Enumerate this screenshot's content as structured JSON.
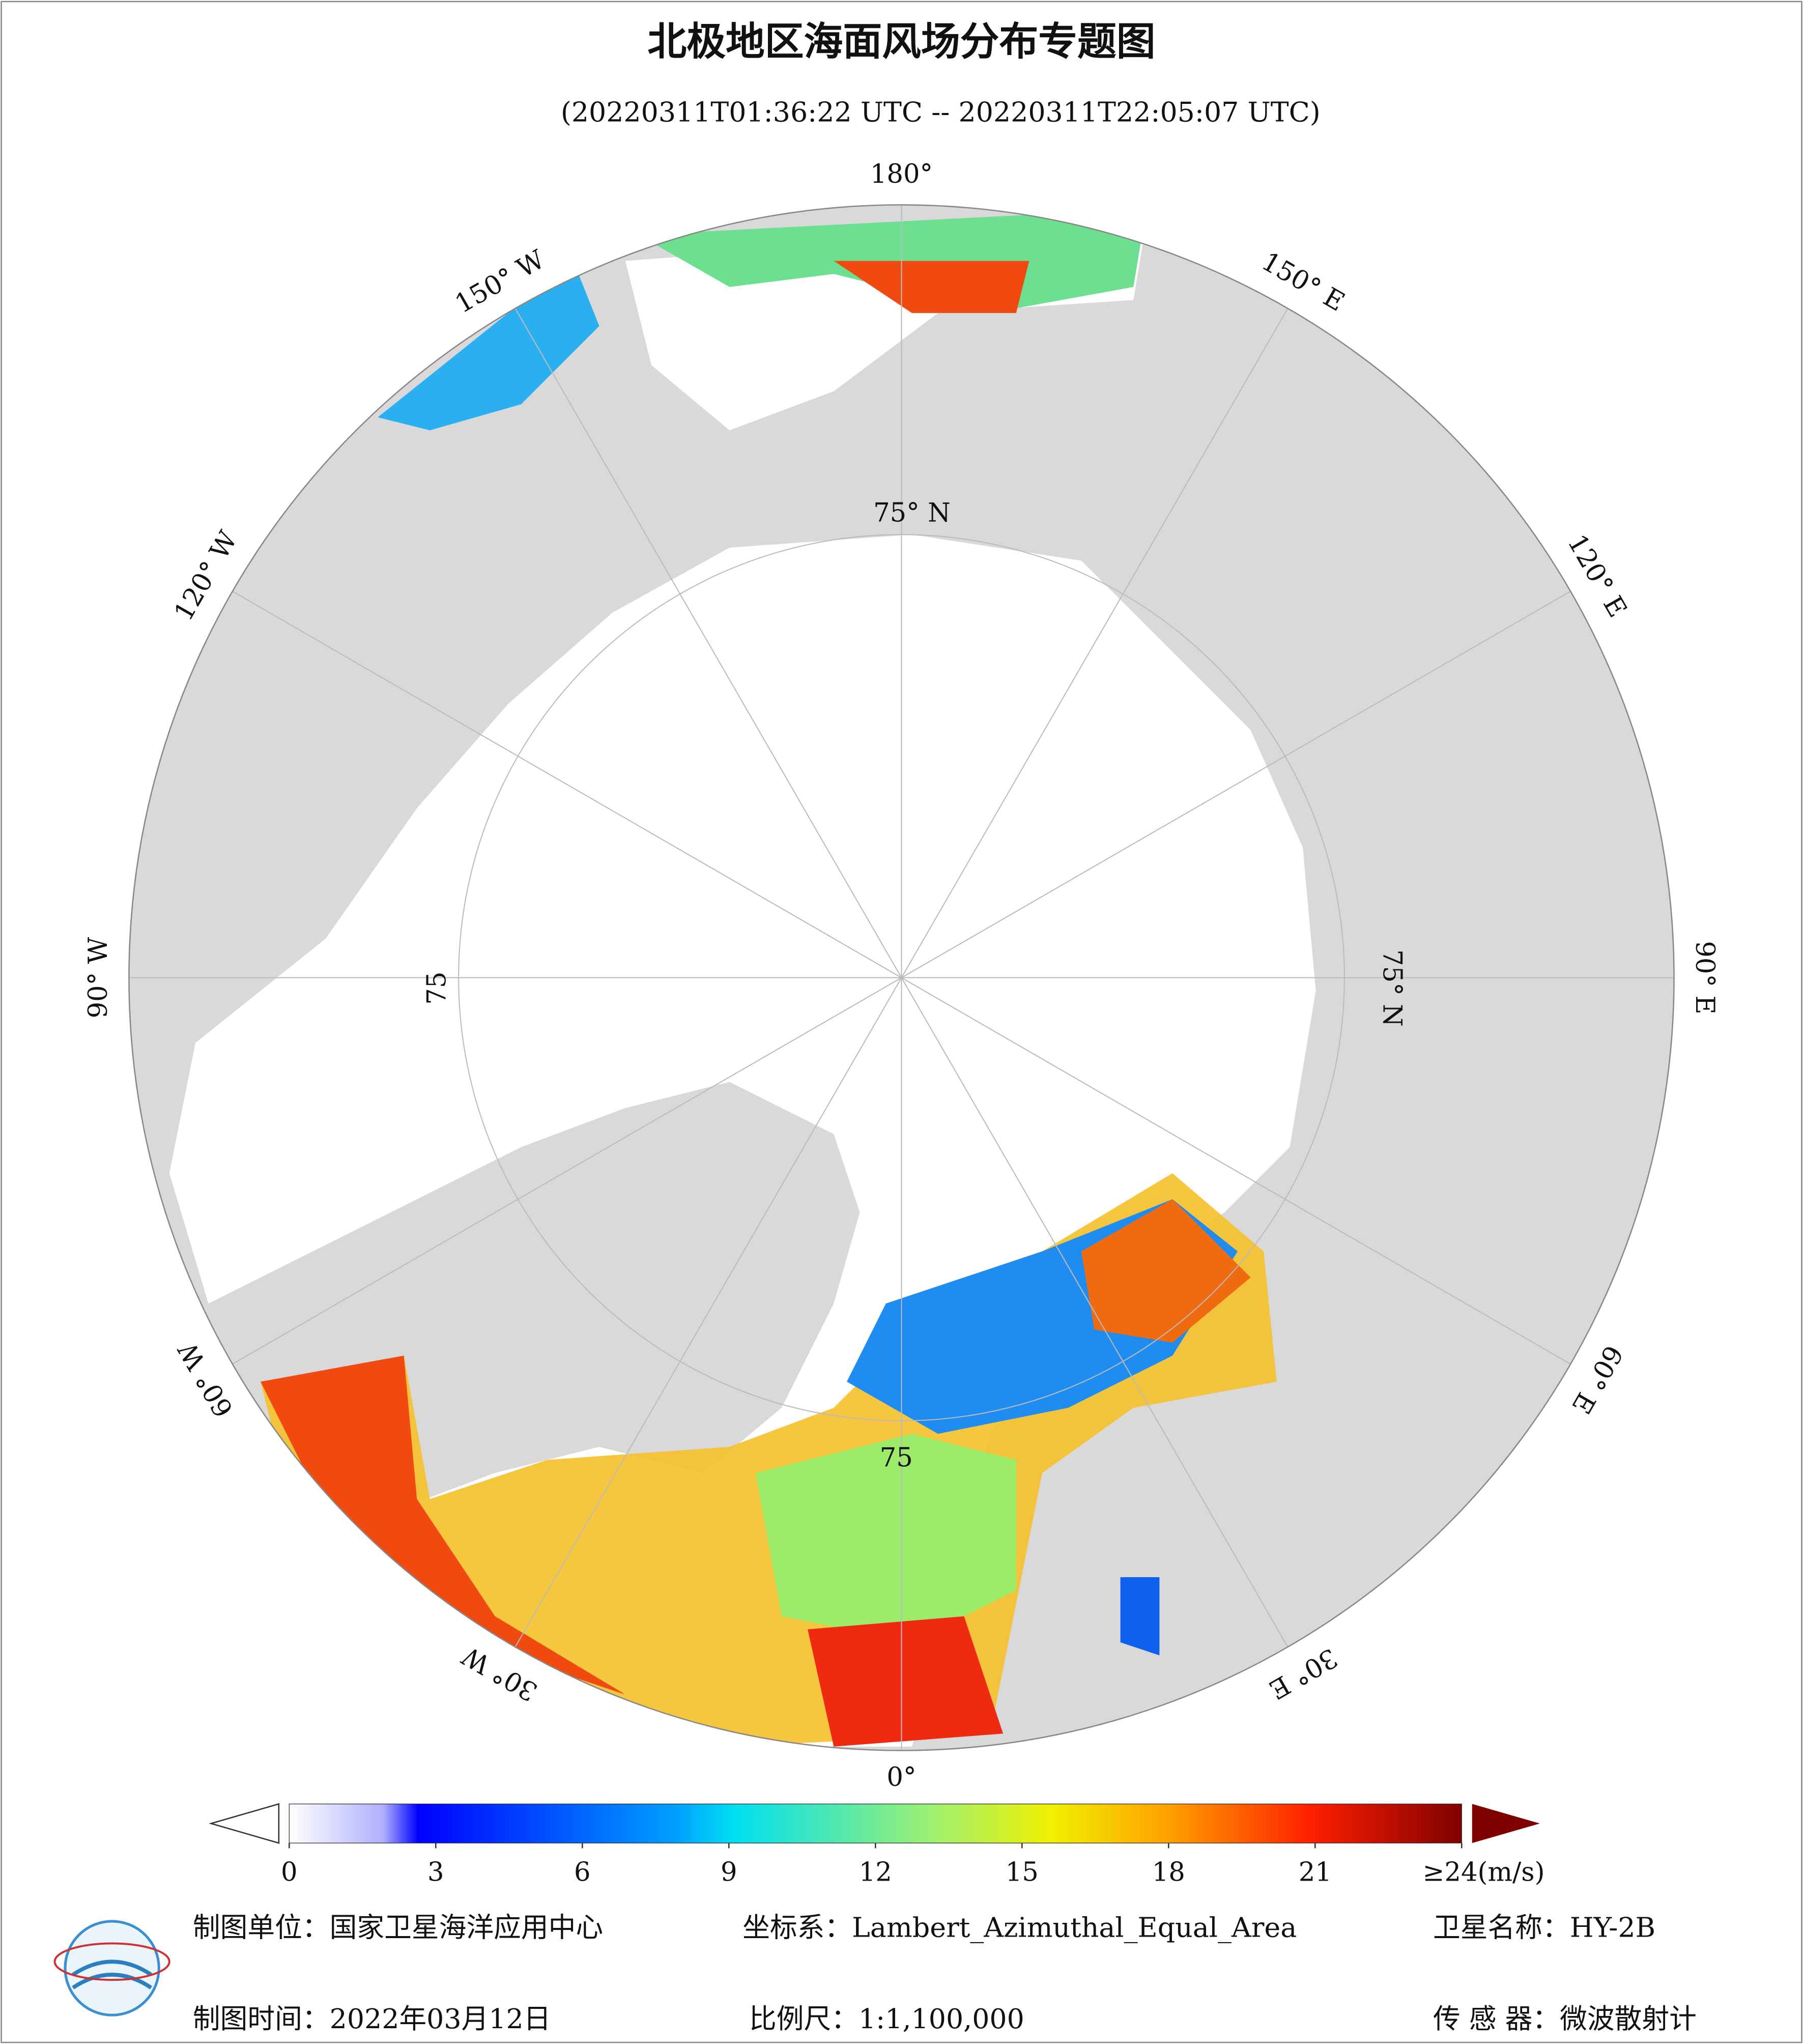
{
  "header": {
    "title": "北极地区海面风场分布专题图",
    "subtitle": "(20220311T01:36:22 UTC -- 20220311T22:05:07 UTC)"
  },
  "map": {
    "lon_labels": [
      "180°",
      "150° E",
      "120° E",
      "90° E",
      "60° E",
      "30° E",
      "0°",
      "30° W",
      "60° W",
      "90° W",
      "120° W",
      "150° W"
    ],
    "lat_labels": [
      "75° N",
      "75° N",
      "75",
      "75"
    ]
  },
  "colorbar": {
    "lim": [
      0,
      24
    ],
    "ticks": [
      0,
      3,
      6,
      9,
      12,
      15,
      18,
      21,
      {
        "value": 24,
        "label": "≥24(m/s)"
      }
    ]
  },
  "footer": {
    "unit": "制图单位：国家卫星海洋应用中心",
    "crs": "坐标系：Lambert_Azimuthal_Equal_Area",
    "satellite": "卫星名称：HY-2B",
    "date": "制图时间：2022年03月12日",
    "scale": "比例尺：1:1,100,000",
    "sensor": "传 感 器：微波散射计"
  }
}
